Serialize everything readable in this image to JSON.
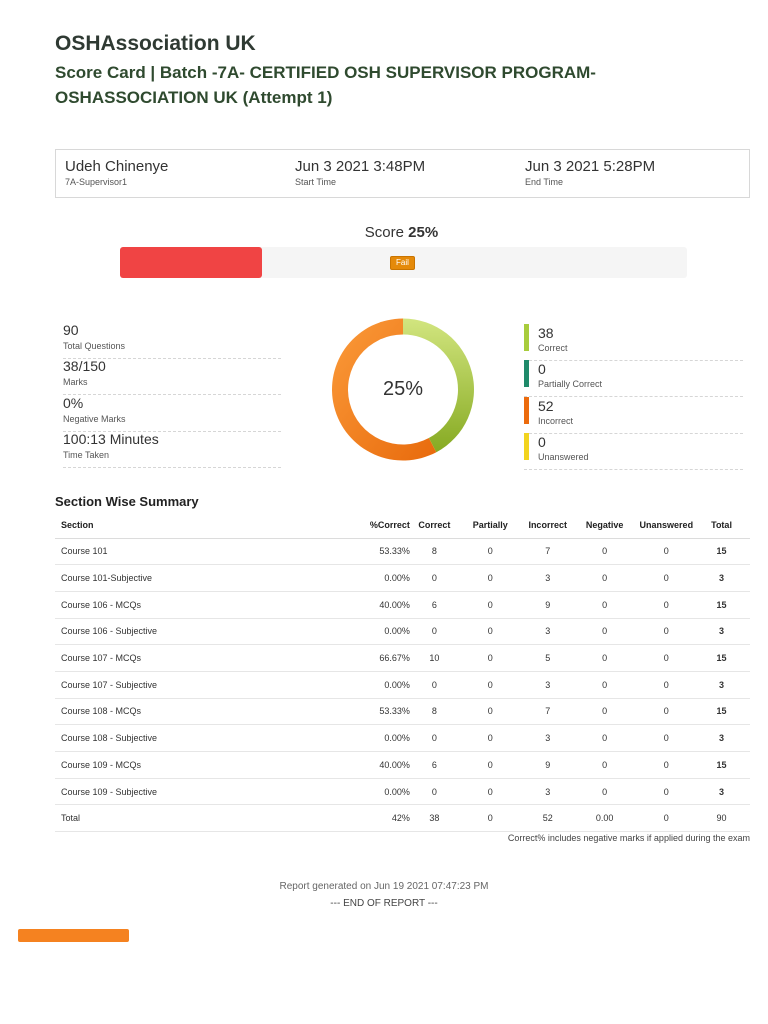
{
  "header": {
    "org": "OSHAssociation UK",
    "title": "Score Card  |  Batch -7A- CERTIFIED OSH SUPERVISOR PROGRAM- OSHASSOCIATION UK (Attempt 1)"
  },
  "candidate": {
    "name": "Udeh Chinenye",
    "group": "7A-Supervisor1",
    "start_time": "Jun 3 2021 3:48PM",
    "start_label": "Start Time",
    "end_time": "Jun 3 2021 5:28PM",
    "end_label": "End Time"
  },
  "score": {
    "label": "Score",
    "value": "25%",
    "fraction": 0.25,
    "status": "Fail"
  },
  "stats_left": [
    {
      "value": "90",
      "label": "Total Questions"
    },
    {
      "value": "38/150",
      "label": "Marks"
    },
    {
      "value": "0%",
      "label": "Negative Marks"
    },
    {
      "value": "100:13 Minutes",
      "label": "Time Taken"
    }
  ],
  "stats_right": [
    {
      "value": "38",
      "label": "Correct",
      "color": "#a8cc3c"
    },
    {
      "value": "0",
      "label": "Partially Correct",
      "color": "#1f8a6a"
    },
    {
      "value": "52",
      "label": "Incorrect",
      "color": "#ec6b0d"
    },
    {
      "value": "0",
      "label": "Unanswered",
      "color": "#f2d41f"
    }
  ],
  "donut": {
    "center_label": "25%",
    "segments": [
      {
        "name": "Correct",
        "value": 38,
        "color_a": "#d2e57f",
        "color_b": "#86aa22"
      },
      {
        "name": "Incorrect",
        "value": 52,
        "color_a": "#e86a0c",
        "color_b": "#fb9b3a"
      }
    ]
  },
  "summary": {
    "title": "Section Wise Summary",
    "columns": [
      "Section",
      "%Correct",
      "Correct",
      "Partially",
      "Incorrect",
      "Negative",
      "Unanswered",
      "Total"
    ],
    "rows": [
      [
        "Course 101",
        "53.33%",
        "8",
        "0",
        "7",
        "0",
        "0",
        "15"
      ],
      [
        "Course 101-Subjective",
        "0.00%",
        "0",
        "0",
        "3",
        "0",
        "0",
        "3"
      ],
      [
        "Course 106 - MCQs",
        "40.00%",
        "6",
        "0",
        "9",
        "0",
        "0",
        "15"
      ],
      [
        "Course 106 - Subjective",
        "0.00%",
        "0",
        "0",
        "3",
        "0",
        "0",
        "3"
      ],
      [
        "Course 107 - MCQs",
        "66.67%",
        "10",
        "0",
        "5",
        "0",
        "0",
        "15"
      ],
      [
        "Course 107 - Subjective",
        "0.00%",
        "0",
        "0",
        "3",
        "0",
        "0",
        "3"
      ],
      [
        "Course 108 - MCQs",
        "53.33%",
        "8",
        "0",
        "7",
        "0",
        "0",
        "15"
      ],
      [
        "Course 108 - Subjective",
        "0.00%",
        "0",
        "0",
        "3",
        "0",
        "0",
        "3"
      ],
      [
        "Course 109 - MCQs",
        "40.00%",
        "6",
        "0",
        "9",
        "0",
        "0",
        "15"
      ],
      [
        "Course 109 - Subjective",
        "0.00%",
        "0",
        "0",
        "3",
        "0",
        "0",
        "3"
      ]
    ],
    "total_row": [
      "Total",
      "42%",
      "38",
      "0",
      "52",
      "0.00",
      "0",
      "90"
    ],
    "footnote": "Correct% includes negative marks if applied during the exam"
  },
  "footer": {
    "generated": "Report generated on Jun 19 2021 07:47:23 PM",
    "end": "--- END OF REPORT ---"
  }
}
